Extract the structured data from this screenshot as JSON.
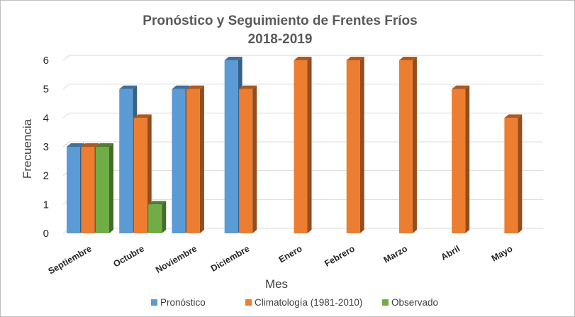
{
  "chart_data": {
    "type": "bar",
    "title": [
      "Pronóstico y Seguimiento de Frentes Fríos",
      "2018-2019"
    ],
    "xlabel": "Mes",
    "ylabel": "Frecuencia",
    "ylim": [
      0,
      6
    ],
    "yticks": [
      "0",
      "1",
      "2",
      "3",
      "4",
      "5",
      "6"
    ],
    "categories": [
      "Septiembre",
      "Octubre",
      "Noviembre",
      "Diciembre",
      "Enero",
      "Febrero",
      "Marzo",
      "Abril",
      "Mayo"
    ],
    "series": [
      {
        "name": "Pronóstico",
        "color": "#5b9bd5",
        "values": [
          3,
          5,
          5,
          6,
          null,
          null,
          null,
          null,
          null
        ]
      },
      {
        "name": "Climatología (1981-2010)",
        "color": "#ed7d31",
        "values": [
          3,
          4,
          5,
          5,
          6,
          6,
          6,
          5,
          4
        ]
      },
      {
        "name": "Observado",
        "color": "#70ad47",
        "values": [
          3,
          1,
          null,
          null,
          null,
          null,
          null,
          null,
          null
        ]
      }
    ],
    "grid": true,
    "legend_position": "bottom",
    "style": "3d-clustered-column"
  }
}
